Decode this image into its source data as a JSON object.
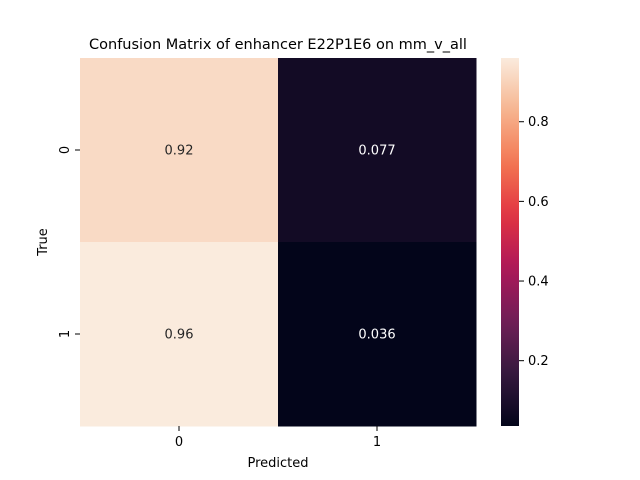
{
  "chart_data": {
    "type": "heatmap",
    "title": "Confusion Matrix of enhancer E22P1E6 on mm_v_all",
    "xlabel": "Predicted",
    "ylabel": "True",
    "x_categories": [
      "0",
      "1"
    ],
    "y_categories": [
      "0",
      "1"
    ],
    "values": [
      [
        0.92,
        0.077
      ],
      [
        0.96,
        0.036
      ]
    ],
    "annotations": [
      [
        "0.92",
        "0.077"
      ],
      [
        "0.96",
        "0.036"
      ]
    ],
    "colormap": "rocket",
    "color_range": [
      0.036,
      0.96
    ],
    "colorbar_ticks": [
      0.2,
      0.4,
      0.6,
      0.8
    ],
    "colorbar_tick_labels": [
      "0.2",
      "0.4",
      "0.6",
      "0.8"
    ],
    "colormap_stops": [
      "#03051a",
      "#35193e",
      "#701f57",
      "#ad1759",
      "#e13342",
      "#f37651",
      "#f6b48f",
      "#faebdd"
    ]
  }
}
